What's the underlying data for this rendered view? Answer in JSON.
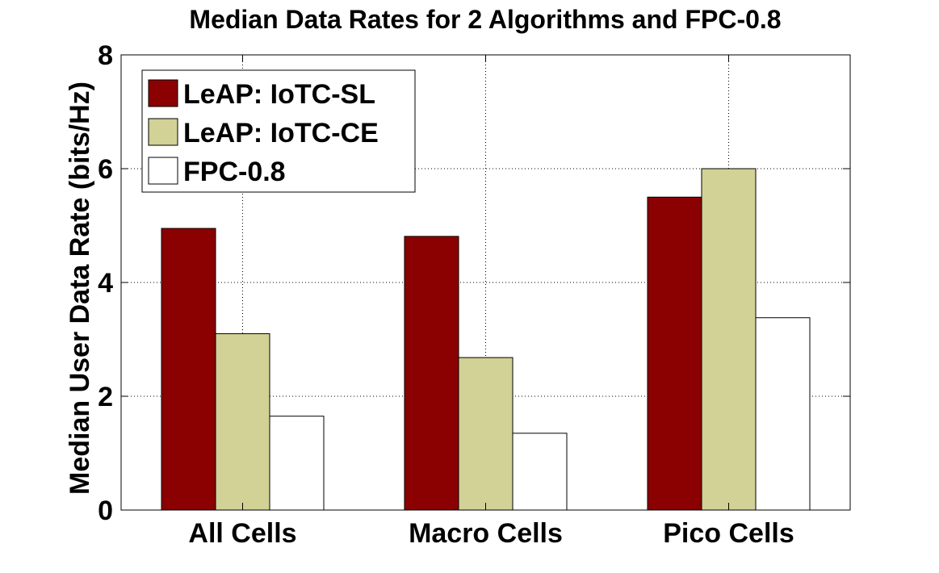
{
  "chart_data": {
    "type": "bar",
    "title": "Median Data Rates for 2 Algorithms and FPC-0.8",
    "xlabel": "",
    "ylabel": "Median User Data Rate (bits/Hz)",
    "categories": [
      "All Cells",
      "Macro Cells",
      "Pico Cells"
    ],
    "series": [
      {
        "name": "LeAP: IoTC-SL",
        "color": "#8B0000",
        "values": [
          4.95,
          4.81,
          5.5
        ]
      },
      {
        "name": "LeAP: IoTC-CE",
        "color": "#D2D196",
        "values": [
          3.1,
          2.68,
          6.0
        ]
      },
      {
        "name": "FPC-0.8",
        "color": "#FFFFFF",
        "values": [
          1.65,
          1.35,
          3.38
        ]
      }
    ],
    "ylim": [
      0,
      8
    ],
    "yticks": [
      0,
      2,
      4,
      6,
      8
    ],
    "grid": true,
    "legend_position": "top-left"
  }
}
